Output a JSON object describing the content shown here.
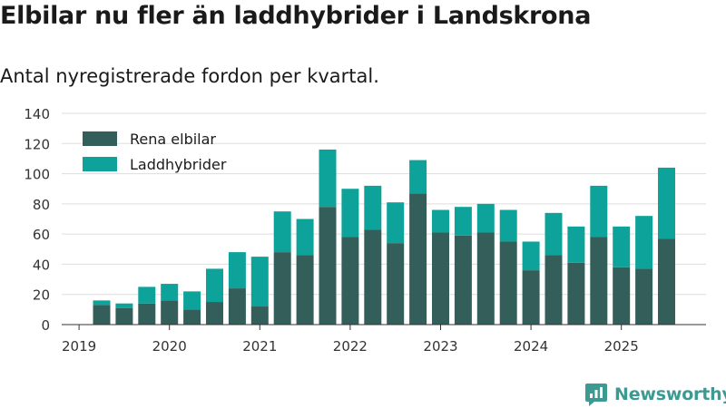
{
  "brand": {
    "name": "Newsworthy",
    "color": "#3d9a93"
  },
  "chart_data": {
    "type": "bar",
    "stacked": true,
    "title": "Elbilar nu fler än laddhybrider i Landskrona",
    "subtitle": "Antal nyregistrerade fordon per kvartal.",
    "xlabel": "",
    "ylabel": "",
    "ylim": [
      0,
      140
    ],
    "yticks": [
      0,
      20,
      40,
      60,
      80,
      100,
      120,
      140
    ],
    "grid": true,
    "legend_position": "top-left",
    "categories": [
      "2019 Q2",
      "2019 Q3",
      "2019 Q4",
      "2020 Q1",
      "2020 Q2",
      "2020 Q3",
      "2020 Q4",
      "2021 Q1",
      "2021 Q2",
      "2021 Q3",
      "2021 Q4",
      "2022 Q1",
      "2022 Q2",
      "2022 Q3",
      "2022 Q4",
      "2023 Q1",
      "2023 Q2",
      "2023 Q3",
      "2023 Q4",
      "2024 Q1",
      "2024 Q2",
      "2024 Q3",
      "2024 Q4",
      "2025 Q1",
      "2025 Q2",
      "2025 Q3"
    ],
    "x_tick_labels": [
      {
        "label": "2019",
        "category_index": 0,
        "offset": -1
      },
      {
        "label": "2020",
        "category_index": 3,
        "offset": 0
      },
      {
        "label": "2021",
        "category_index": 7,
        "offset": 0
      },
      {
        "label": "2022",
        "category_index": 11,
        "offset": 0
      },
      {
        "label": "2023",
        "category_index": 15,
        "offset": 0
      },
      {
        "label": "2024",
        "category_index": 19,
        "offset": 0
      },
      {
        "label": "2025",
        "category_index": 23,
        "offset": 0
      }
    ],
    "series": [
      {
        "name": "Rena elbilar",
        "color": "#345e5a",
        "values": [
          13,
          11,
          14,
          16,
          10,
          15,
          24,
          12,
          48,
          46,
          78,
          58,
          63,
          54,
          87,
          61,
          59,
          61,
          55,
          36,
          46,
          41,
          58,
          38,
          37,
          57
        ]
      },
      {
        "name": "Laddhybrider",
        "color": "#0ea39a",
        "values": [
          3,
          3,
          11,
          11,
          12,
          22,
          24,
          33,
          27,
          24,
          38,
          32,
          29,
          27,
          22,
          15,
          19,
          19,
          21,
          19,
          28,
          24,
          34,
          27,
          35,
          47
        ]
      }
    ]
  }
}
